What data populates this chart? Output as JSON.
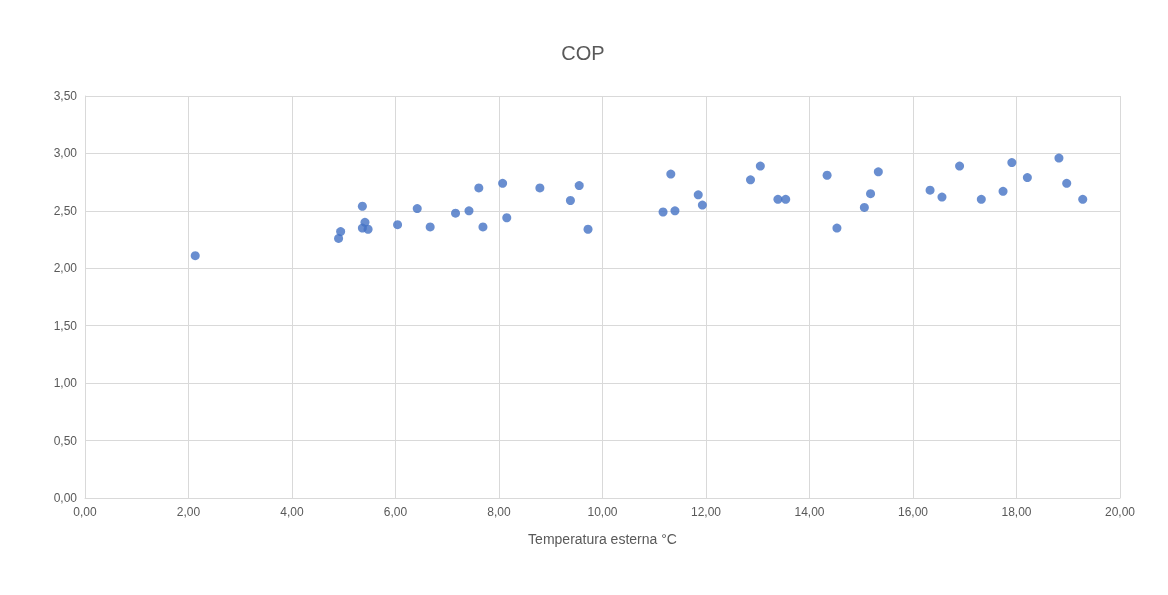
{
  "chart_data": {
    "type": "scatter",
    "title": "COP",
    "xlabel": "Temperatura esterna °C",
    "x": [
      2.13,
      4.9,
      4.94,
      5.36,
      5.41,
      5.36,
      5.47,
      6.04,
      6.42,
      6.67,
      7.16,
      7.42,
      7.61,
      7.69,
      8.07,
      8.15,
      8.79,
      9.38,
      9.55,
      9.72,
      11.17,
      11.32,
      11.4,
      11.85,
      11.93,
      12.86,
      13.05,
      13.39,
      13.54,
      14.34,
      14.53,
      15.06,
      15.18,
      15.33,
      16.33,
      16.56,
      16.9,
      17.32,
      17.74,
      17.91,
      18.21,
      18.82,
      18.97,
      19.28
    ],
    "values": [
      2.11,
      2.26,
      2.32,
      2.54,
      2.4,
      2.35,
      2.34,
      2.38,
      2.52,
      2.36,
      2.48,
      2.5,
      2.7,
      2.36,
      2.74,
      2.44,
      2.7,
      2.59,
      2.72,
      2.34,
      2.49,
      2.82,
      2.5,
      2.64,
      2.55,
      2.77,
      2.89,
      2.6,
      2.6,
      2.81,
      2.35,
      2.53,
      2.65,
      2.84,
      2.68,
      2.62,
      2.89,
      2.6,
      2.67,
      2.92,
      2.79,
      2.96,
      2.74,
      2.6
    ],
    "color": "#4472c4",
    "marker": "circle",
    "xlim": [
      0,
      20
    ],
    "xticks": [
      {
        "value": 0,
        "label": "0,00"
      },
      {
        "value": 2,
        "label": "2,00"
      },
      {
        "value": 4,
        "label": "4,00"
      },
      {
        "value": 6,
        "label": "6,00"
      },
      {
        "value": 8,
        "label": "8,00"
      },
      {
        "value": 10,
        "label": "10,00"
      },
      {
        "value": 12,
        "label": "12,00"
      },
      {
        "value": 14,
        "label": "14,00"
      },
      {
        "value": 16,
        "label": "16,00"
      },
      {
        "value": 18,
        "label": "18,00"
      },
      {
        "value": 20,
        "label": "20,00"
      }
    ],
    "ylim": [
      0,
      3.5
    ],
    "yticks": [
      {
        "value": 0,
        "label": "0,00"
      },
      {
        "value": 0.5,
        "label": "0,50"
      },
      {
        "value": 1,
        "label": "1,00"
      },
      {
        "value": 1.5,
        "label": "1,50"
      },
      {
        "value": 2,
        "label": "2,00"
      },
      {
        "value": 2.5,
        "label": "2,50"
      },
      {
        "value": 3,
        "label": "3,00"
      },
      {
        "value": 3.5,
        "label": "3,50"
      }
    ],
    "grid": true
  }
}
